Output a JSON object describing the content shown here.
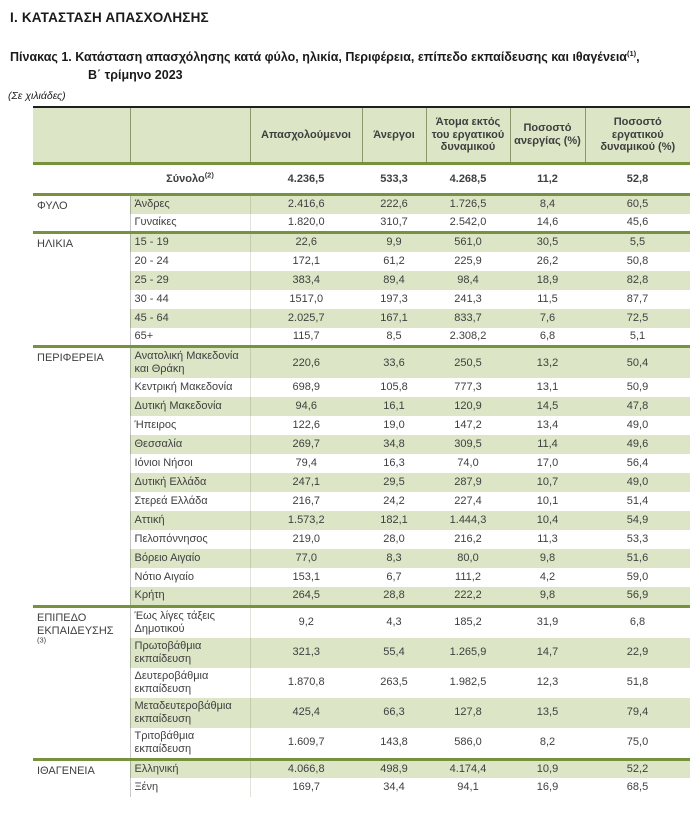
{
  "page": {
    "section_title": "Ι. ΚΑΤΑΣΤΑΣΗ ΑΠΑΣΧΟΛΗΣΗΣ",
    "caption": {
      "line1": "Πίνακας 1. Κατάσταση απασχόλησης κατά φύλο, ηλικία, Περιφέρεια, επίπεδο εκπαίδευσης και ιθαγένεια",
      "footnote_marker": "(1)",
      "line1_tail": ",",
      "line2": "Β΄ τρίμηνο 2023"
    },
    "units_note": "(Σε χιλιάδες)"
  },
  "colors": {
    "row_shade": "#dce5c6",
    "group_border": "#77923d",
    "header_top_border": "#1f1f1f",
    "text": "#3f3f3f"
  },
  "table": {
    "columns": [
      "Απασχολούμενοι",
      "Άνεργοι",
      "Άτομα εκτός του εργατικού δυναμικού",
      "Ποσοστό ανεργίας (%)",
      "Ποσοστό εργατικού δυναμικού (%)"
    ],
    "total_row": {
      "label": "Σύνολο",
      "footnote_marker": "(2)",
      "values": [
        "4.236,5",
        "533,3",
        "4.268,5",
        "11,2",
        "52,8"
      ]
    },
    "groups": [
      {
        "category": "ΦΥΛΟ",
        "rows": [
          {
            "label": "Άνδρες",
            "values": [
              "2.416,6",
              "222,6",
              "1.726,5",
              "8,4",
              "60,5"
            ]
          },
          {
            "label": "Γυναίκες",
            "values": [
              "1.820,0",
              "310,7",
              "2.542,0",
              "14,6",
              "45,6"
            ]
          }
        ]
      },
      {
        "category": "ΗΛΙΚΙΑ",
        "rows": [
          {
            "label": "15 - 19",
            "values": [
              "22,6",
              "9,9",
              "561,0",
              "30,5",
              "5,5"
            ]
          },
          {
            "label": "20 - 24",
            "values": [
              "172,1",
              "61,2",
              "225,9",
              "26,2",
              "50,8"
            ]
          },
          {
            "label": "25 - 29",
            "values": [
              "383,4",
              "89,4",
              "98,4",
              "18,9",
              "82,8"
            ]
          },
          {
            "label": "30 - 44",
            "values": [
              "1517,0",
              "197,3",
              "241,3",
              "11,5",
              "87,7"
            ]
          },
          {
            "label": "45 - 64",
            "values": [
              "2.025,7",
              "167,1",
              "833,7",
              "7,6",
              "72,5"
            ]
          },
          {
            "label": "65+",
            "values": [
              "115,7",
              "8,5",
              "2.308,2",
              "6,8",
              "5,1"
            ]
          }
        ]
      },
      {
        "category": "ΠΕΡΙΦΕΡΕΙΑ",
        "rows": [
          {
            "label": "Ανατολική Μακεδονία και Θράκη",
            "values": [
              "220,6",
              "33,6",
              "250,5",
              "13,2",
              "50,4"
            ]
          },
          {
            "label": "Κεντρική Μακεδονία",
            "values": [
              "698,9",
              "105,8",
              "777,3",
              "13,1",
              "50,9"
            ]
          },
          {
            "label": "Δυτική Μακεδονία",
            "values": [
              "94,6",
              "16,1",
              "120,9",
              "14,5",
              "47,8"
            ]
          },
          {
            "label": "Ήπειρος",
            "values": [
              "122,6",
              "19,0",
              "147,2",
              "13,4",
              "49,0"
            ]
          },
          {
            "label": "Θεσσαλία",
            "values": [
              "269,7",
              "34,8",
              "309,5",
              "11,4",
              "49,6"
            ]
          },
          {
            "label": "Ιόνιοι Νήσοι",
            "values": [
              "79,4",
              "16,3",
              "74,0",
              "17,0",
              "56,4"
            ]
          },
          {
            "label": "Δυτική Ελλάδα",
            "values": [
              "247,1",
              "29,5",
              "287,9",
              "10,7",
              "49,0"
            ]
          },
          {
            "label": "Στερεά Ελλάδα",
            "values": [
              "216,7",
              "24,2",
              "227,4",
              "10,1",
              "51,4"
            ]
          },
          {
            "label": "Αττική",
            "values": [
              "1.573,2",
              "182,1",
              "1.444,3",
              "10,4",
              "54,9"
            ]
          },
          {
            "label": "Πελοπόννησος",
            "values": [
              "219,0",
              "28,0",
              "216,2",
              "11,3",
              "53,3"
            ]
          },
          {
            "label": "Βόρειο Αιγαίο",
            "values": [
              "77,0",
              "8,3",
              "80,0",
              "9,8",
              "51,6"
            ]
          },
          {
            "label": "Νότιο Αιγαίο",
            "values": [
              "153,1",
              "6,7",
              "111,2",
              "4,2",
              "59,0"
            ]
          },
          {
            "label": "Κρήτη",
            "values": [
              "264,5",
              "28,8",
              "222,2",
              "9,8",
              "56,9"
            ]
          }
        ]
      },
      {
        "category": "ΕΠΙΠΕΔΟ ΕΚΠΑΙΔΕΥΣΗΣ",
        "category_footnote_marker": "(3)",
        "rows": [
          {
            "label": "Έως λίγες τάξεις Δημοτικού",
            "values": [
              "9,2",
              "4,3",
              "185,2",
              "31,9",
              "6,8"
            ]
          },
          {
            "label": "Πρωτοβάθμια εκπαίδευση",
            "values": [
              "321,3",
              "55,4",
              "1.265,9",
              "14,7",
              "22,9"
            ]
          },
          {
            "label": "Δευτεροβάθμια εκπαίδευση",
            "values": [
              "1.870,8",
              "263,5",
              "1.982,5",
              "12,3",
              "51,8"
            ]
          },
          {
            "label": "Μεταδευτεροβάθμια εκπαίδευση",
            "values": [
              "425,4",
              "66,3",
              "127,8",
              "13,5",
              "79,4"
            ]
          },
          {
            "label": "Τριτοβάθμια εκπαίδευση",
            "values": [
              "1.609,7",
              "143,8",
              "586,0",
              "8,2",
              "75,0"
            ]
          }
        ]
      },
      {
        "category": "ΙΘΑΓΕΝΕΙΑ",
        "rows": [
          {
            "label": "Ελληνική",
            "values": [
              "4.066,8",
              "498,9",
              "4.174,4",
              "10,9",
              "52,2"
            ]
          },
          {
            "label": "Ξένη",
            "values": [
              "169,7",
              "34,4",
              "94,1",
              "16,9",
              "68,5"
            ]
          }
        ]
      }
    ]
  }
}
